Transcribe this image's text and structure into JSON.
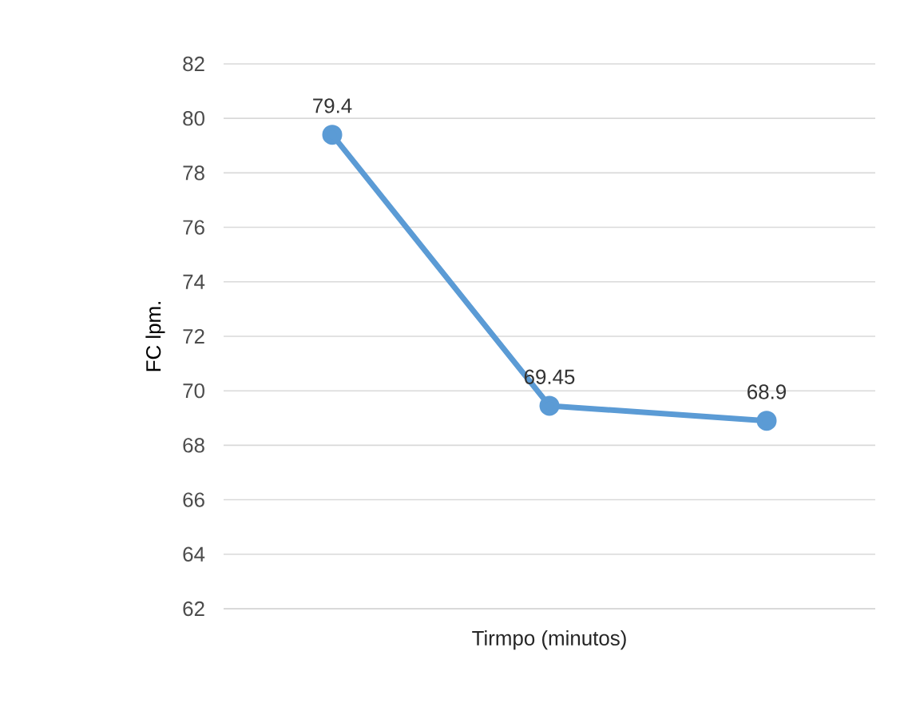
{
  "chart_data": {
    "type": "line",
    "xlabel": "Tirmpo (minutos)",
    "ylabel": "FC  lpm.",
    "categories": [
      null,
      null,
      null
    ],
    "series": [
      {
        "color": "#5b9bd5",
        "values": [
          79.4,
          69.45,
          68.9
        ]
      }
    ],
    "ylim": [
      62,
      82
    ],
    "yticks": [
      62,
      64,
      66,
      68,
      70,
      72,
      74,
      76,
      78,
      80,
      82
    ],
    "grid": "y",
    "marker": "circle",
    "line_style": "solid",
    "data_labels": true
  }
}
